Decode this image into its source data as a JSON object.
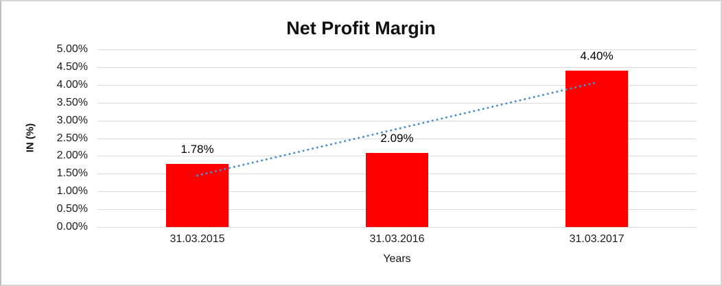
{
  "chart_data": {
    "type": "bar",
    "title": "Net Profit Margin",
    "categories": [
      "31.03.2015",
      "31.03.2016",
      "31.03.2017"
    ],
    "values": [
      1.78,
      2.09,
      4.4
    ],
    "data_labels": [
      "1.78%",
      "2.09%",
      "4.40%"
    ],
    "xlabel": "Years",
    "ylabel": "IN (%)",
    "ylim": [
      0,
      5
    ],
    "ytick_step": 0.5,
    "ytick_labels": [
      "0.00%",
      "0.50%",
      "1.00%",
      "1.50%",
      "2.00%",
      "2.50%",
      "3.00%",
      "3.50%",
      "4.00%",
      "4.50%",
      "5.00%"
    ],
    "grid": true,
    "legend": "none",
    "bar_color": "#ff0000",
    "gridline_color": "#d9d9d9",
    "text_color": "#111111",
    "trendline": {
      "type": "linear",
      "style": "dotted",
      "color": "#4e8fd1",
      "start_category_index": 0,
      "end_category_index": 2,
      "start_value": 1.45,
      "end_value": 4.07
    }
  }
}
